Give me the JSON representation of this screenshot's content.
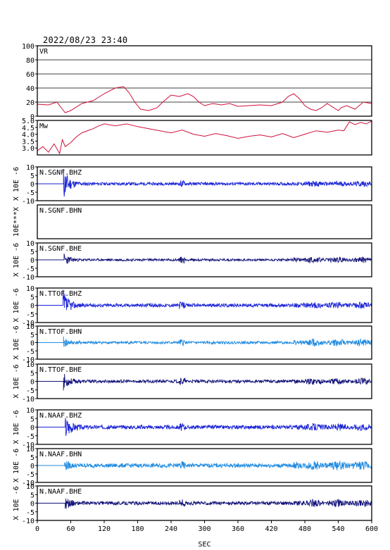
{
  "header": {
    "timestamp": "2022/08/23 23:40"
  },
  "chart_data": {
    "type": "line",
    "xlabel": "SEC",
    "xlim": [
      0,
      600
    ],
    "x_ticks": [
      "0",
      "60",
      "120",
      "180",
      "240",
      "300",
      "360",
      "420",
      "480",
      "540",
      "600"
    ],
    "panels": [
      {
        "id": "vr",
        "label": "VR",
        "ylim": [
          0,
          100
        ],
        "y_ticks": [
          "100",
          "80",
          "60",
          "40",
          "20",
          "0"
        ],
        "grid": true,
        "color": "#d0103a",
        "x": [
          0,
          20,
          35,
          45,
          50,
          60,
          80,
          100,
          120,
          140,
          155,
          165,
          175,
          185,
          200,
          215,
          225,
          240,
          255,
          270,
          280,
          290,
          300,
          315,
          330,
          345,
          360,
          380,
          400,
          420,
          440,
          450,
          460,
          470,
          480,
          490,
          500,
          510,
          520,
          540,
          545,
          555,
          570,
          585,
          600
        ],
        "values": [
          17,
          16,
          20,
          10,
          5,
          8,
          18,
          22,
          32,
          40,
          42,
          33,
          20,
          10,
          8,
          12,
          20,
          30,
          28,
          32,
          28,
          20,
          15,
          18,
          16,
          18,
          14,
          15,
          16,
          15,
          20,
          28,
          32,
          25,
          15,
          10,
          8,
          12,
          18,
          8,
          12,
          15,
          10,
          20,
          18
        ]
      },
      {
        "id": "mw",
        "label": "Mw",
        "ylim": [
          2.5,
          5.0
        ],
        "y_ticks": [
          "5.0",
          "4.5",
          "4.0",
          "3.5",
          "3.0"
        ],
        "grid": false,
        "color": "#d0103a",
        "x": [
          0,
          10,
          20,
          30,
          40,
          45,
          50,
          60,
          70,
          80,
          100,
          110,
          120,
          140,
          160,
          180,
          200,
          220,
          240,
          260,
          280,
          300,
          320,
          340,
          360,
          380,
          400,
          420,
          440,
          460,
          480,
          500,
          520,
          540,
          550,
          560,
          570,
          580,
          590,
          600
        ],
        "values": [
          2.8,
          3.1,
          2.7,
          3.3,
          2.6,
          3.6,
          3.1,
          3.4,
          3.8,
          4.1,
          4.4,
          4.6,
          4.75,
          4.6,
          4.75,
          4.55,
          4.4,
          4.25,
          4.1,
          4.3,
          4.0,
          3.85,
          4.05,
          3.9,
          3.7,
          3.85,
          3.95,
          3.8,
          4.05,
          3.75,
          4.0,
          4.25,
          4.15,
          4.3,
          4.25,
          4.9,
          4.7,
          4.85,
          4.75,
          4.95
        ]
      },
      {
        "id": "sgnf-bhz",
        "label": "N.SGNF.BHZ",
        "ylabel": "X 10E -6",
        "ylim": [
          -10,
          10
        ],
        "y_ticks": [
          "10",
          "5",
          "0",
          "-5",
          "-10"
        ],
        "color": "#1a23d6",
        "onset": 47,
        "peak": 10,
        "noise": 0.9,
        "late": 0.8,
        "seed": 11
      },
      {
        "id": "sgnf-bhn",
        "label": "N.SGNF.BHN",
        "ylabel": "10E***X",
        "ylim": [
          -10,
          10
        ],
        "y_ticks": [],
        "color": "#1a23d6",
        "empty": true
      },
      {
        "id": "sgnf-bhe",
        "label": "N.SGNF.BHE",
        "ylabel": "X 10E -6",
        "ylim": [
          -10,
          10
        ],
        "y_ticks": [
          "10",
          "5",
          "0",
          "-5",
          "-10"
        ],
        "color": "#13137a",
        "onset": 48,
        "peak": 3.5,
        "noise": 0.7,
        "late": 1.2,
        "seed": 23
      },
      {
        "id": "ttof-bhz",
        "label": "N.TTOF.BHZ",
        "ylabel": "X 10E -6",
        "ylim": [
          -10,
          10
        ],
        "y_ticks": [
          "10",
          "5",
          "0",
          "-5",
          "-10"
        ],
        "color": "#1a23d6",
        "onset": 46,
        "peak": 9,
        "noise": 1.0,
        "late": 0.9,
        "seed": 37
      },
      {
        "id": "ttof-bhn",
        "label": "N.TTOF.BHN",
        "ylabel": "X 10E -6",
        "ylim": [
          -10,
          10
        ],
        "y_ticks": [
          "10",
          "5",
          "0",
          "-5",
          "-10"
        ],
        "color": "#1e8ae0",
        "onset": 47,
        "peak": 3,
        "noise": 0.8,
        "late": 1.6,
        "seed": 41
      },
      {
        "id": "ttof-bhe",
        "label": "N.TTOF.BHE",
        "ylabel": "X 10E -6",
        "ylim": [
          -10,
          10
        ],
        "y_ticks": [
          "10",
          "5",
          "0",
          "-5",
          "-10"
        ],
        "color": "#13137a",
        "onset": 47,
        "peak": 4.5,
        "noise": 0.9,
        "late": 1.1,
        "seed": 53
      },
      {
        "id": "naaf-bhz",
        "label": "N.NAAF.BHZ",
        "ylabel": "X 10E -6",
        "ylim": [
          -10,
          10
        ],
        "y_ticks": [
          "10",
          "5",
          "0",
          "-5",
          "-10"
        ],
        "color": "#1a23d6",
        "onset": 50,
        "peak": 7,
        "noise": 1.1,
        "late": 1.0,
        "seed": 67
      },
      {
        "id": "naaf-bhn",
        "label": "N.NAAF.BHN",
        "ylabel": "X 10E -6",
        "ylim": [
          -10,
          10
        ],
        "y_ticks": [
          "10",
          "5",
          "0",
          "-5",
          "-10"
        ],
        "color": "#1e8ae0",
        "onset": 49,
        "peak": 2.5,
        "noise": 1.2,
        "late": 1.6,
        "seed": 79
      },
      {
        "id": "naaf-bhe",
        "label": "N.NAAF.BHE",
        "ylabel": "X 10E -6",
        "ylim": [
          -10,
          10
        ],
        "y_ticks": [
          "10",
          "5",
          "0",
          "-5",
          "-10"
        ],
        "color": "#13137a",
        "onset": 50,
        "peak": 3,
        "noise": 1.0,
        "late": 1.2,
        "seed": 89
      }
    ]
  }
}
